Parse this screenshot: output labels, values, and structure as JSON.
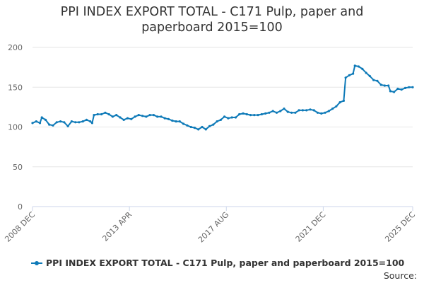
{
  "colors": {
    "series": "#0e7ab8",
    "grid": "#e6e6e6",
    "axis": "#ccd6eb",
    "text": "#333333",
    "tick": "#666666"
  },
  "source_label": "Source:",
  "chart_data": {
    "type": "line",
    "title_lines": [
      "PPI INDEX EXPORT TOTAL - C171 Pulp, paper and",
      "paperboard 2015=100"
    ],
    "xlabel": "",
    "ylabel": "",
    "ylim": [
      0,
      200
    ],
    "yticks": [
      0,
      50,
      100,
      150,
      200
    ],
    "xlim": [
      "2008-12",
      "2025-12"
    ],
    "xticks": [
      {
        "date": "2008-12",
        "label": "2008 DEC"
      },
      {
        "date": "2013-04",
        "label": "2013 APR"
      },
      {
        "date": "2017-08",
        "label": "2017 AUG"
      },
      {
        "date": "2021-12",
        "label": "2021 DEC"
      },
      {
        "date": "2025-12",
        "label": "2025 DEC"
      }
    ],
    "grid": true,
    "legend_position": "bottom",
    "series": [
      {
        "name": "PPI INDEX EXPORT TOTAL - C171 Pulp, paper and paperboard 2015=100",
        "points": [
          [
            "2008-12",
            105
          ],
          [
            "2009-02",
            107
          ],
          [
            "2009-04",
            105
          ],
          [
            "2009-05",
            112
          ],
          [
            "2009-07",
            109
          ],
          [
            "2009-09",
            103
          ],
          [
            "2009-11",
            102
          ],
          [
            "2010-01",
            106
          ],
          [
            "2010-03",
            107
          ],
          [
            "2010-05",
            106
          ],
          [
            "2010-07",
            101
          ],
          [
            "2010-09",
            107
          ],
          [
            "2010-11",
            106
          ],
          [
            "2011-01",
            106
          ],
          [
            "2011-03",
            107
          ],
          [
            "2011-05",
            109
          ],
          [
            "2011-07",
            107
          ],
          [
            "2011-08",
            105
          ],
          [
            "2011-09",
            115
          ],
          [
            "2011-11",
            116
          ],
          [
            "2012-01",
            116
          ],
          [
            "2012-03",
            118
          ],
          [
            "2012-05",
            116
          ],
          [
            "2012-07",
            113
          ],
          [
            "2012-09",
            115
          ],
          [
            "2012-11",
            112
          ],
          [
            "2013-01",
            109
          ],
          [
            "2013-03",
            111
          ],
          [
            "2013-05",
            110
          ],
          [
            "2013-07",
            113
          ],
          [
            "2013-09",
            115
          ],
          [
            "2013-11",
            114
          ],
          [
            "2014-01",
            113
          ],
          [
            "2014-03",
            115
          ],
          [
            "2014-05",
            115
          ],
          [
            "2014-07",
            113
          ],
          [
            "2014-09",
            113
          ],
          [
            "2014-11",
            111
          ],
          [
            "2015-01",
            110
          ],
          [
            "2015-03",
            108
          ],
          [
            "2015-05",
            107
          ],
          [
            "2015-07",
            107
          ],
          [
            "2015-09",
            104
          ],
          [
            "2015-11",
            102
          ],
          [
            "2016-01",
            100
          ],
          [
            "2016-03",
            99
          ],
          [
            "2016-05",
            97
          ],
          [
            "2016-07",
            100
          ],
          [
            "2016-09",
            97
          ],
          [
            "2016-11",
            101
          ],
          [
            "2017-01",
            103
          ],
          [
            "2017-03",
            107
          ],
          [
            "2017-05",
            109
          ],
          [
            "2017-07",
            113
          ],
          [
            "2017-09",
            111
          ],
          [
            "2017-11",
            112
          ],
          [
            "2018-01",
            112
          ],
          [
            "2018-03",
            116
          ],
          [
            "2018-05",
            117
          ],
          [
            "2018-07",
            116
          ],
          [
            "2018-09",
            115
          ],
          [
            "2018-11",
            115
          ],
          [
            "2019-01",
            115
          ],
          [
            "2019-03",
            116
          ],
          [
            "2019-05",
            117
          ],
          [
            "2019-07",
            118
          ],
          [
            "2019-09",
            120
          ],
          [
            "2019-11",
            118
          ],
          [
            "2020-01",
            120
          ],
          [
            "2020-03",
            123
          ],
          [
            "2020-05",
            119
          ],
          [
            "2020-07",
            118
          ],
          [
            "2020-09",
            118
          ],
          [
            "2020-11",
            121
          ],
          [
            "2021-01",
            121
          ],
          [
            "2021-03",
            121
          ],
          [
            "2021-05",
            122
          ],
          [
            "2021-07",
            121
          ],
          [
            "2021-09",
            118
          ],
          [
            "2021-11",
            117
          ],
          [
            "2022-01",
            118
          ],
          [
            "2022-03",
            120
          ],
          [
            "2022-05",
            123
          ],
          [
            "2022-07",
            126
          ],
          [
            "2022-09",
            131
          ],
          [
            "2022-11",
            133
          ],
          [
            "2022-12",
            162
          ],
          [
            "2023-02",
            165
          ],
          [
            "2023-04",
            167
          ],
          [
            "2023-05",
            177
          ],
          [
            "2023-07",
            176
          ],
          [
            "2023-09",
            173
          ],
          [
            "2023-11",
            168
          ],
          [
            "2024-01",
            164
          ],
          [
            "2024-03",
            159
          ],
          [
            "2024-05",
            158
          ],
          [
            "2024-07",
            153
          ],
          [
            "2024-09",
            152
          ],
          [
            "2024-11",
            152
          ],
          [
            "2024-12",
            145
          ],
          [
            "2025-02",
            144
          ],
          [
            "2025-04",
            148
          ],
          [
            "2025-06",
            147
          ],
          [
            "2025-08",
            149
          ],
          [
            "2025-10",
            150
          ],
          [
            "2025-12",
            150
          ]
        ]
      }
    ]
  }
}
